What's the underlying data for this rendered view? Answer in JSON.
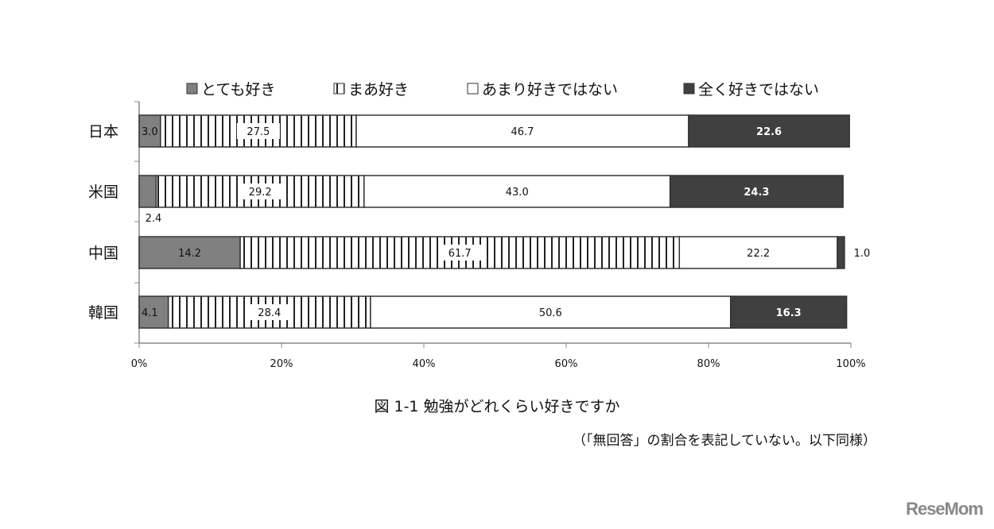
{
  "chart_data": {
    "type": "bar",
    "orientation": "horizontal",
    "stacked": true,
    "categories": [
      "日本",
      "米国",
      "中国",
      "韓国"
    ],
    "series": [
      {
        "name": "とても好き",
        "values": [
          3.0,
          2.4,
          14.2,
          4.1
        ],
        "color": "#808080",
        "pattern": "solid"
      },
      {
        "name": "まあ好き",
        "values": [
          27.5,
          29.2,
          61.7,
          28.4
        ],
        "color": "#ffffff",
        "pattern": "vertical-stripes"
      },
      {
        "name": "あまり好きではない",
        "values": [
          46.7,
          43.0,
          22.2,
          50.6
        ],
        "color": "#ffffff",
        "pattern": "solid"
      },
      {
        "name": "全く好きではない",
        "values": [
          22.6,
          24.3,
          1.0,
          16.3
        ],
        "color": "#404040",
        "pattern": "solid"
      }
    ],
    "xlim": [
      0,
      100
    ],
    "x_ticks": [
      "0%",
      "20%",
      "40%",
      "60%",
      "80%",
      "100%"
    ],
    "legend_placement": "top",
    "grid": false,
    "title": "図 1-1  勉強がどれくらい好きですか",
    "note": "（「無回答」の割合を表記していない。以下同様）"
  },
  "watermark": "ReseMom"
}
